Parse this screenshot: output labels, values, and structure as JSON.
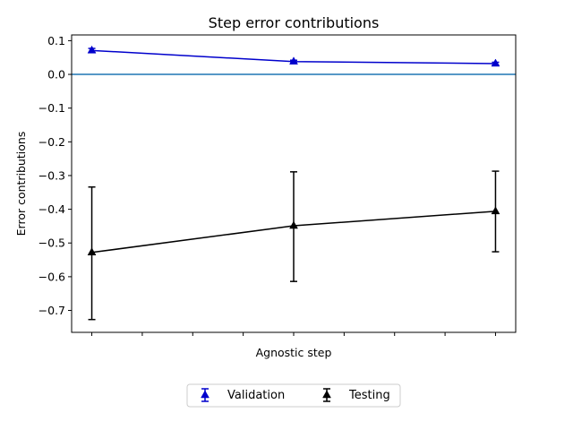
{
  "chart_data": {
    "type": "line",
    "title": "Step error contributions",
    "xlabel": "Agnostic step",
    "ylabel": "Error contributions",
    "x": [
      0,
      1,
      2
    ],
    "xlim": [
      -0.1,
      2.1
    ],
    "x_minor_ticks": [
      0,
      0.25,
      0.5,
      0.75,
      1,
      1.25,
      1.5,
      1.75,
      2
    ],
    "ylim": [
      -0.765,
      0.117
    ],
    "yticks": [
      0.1,
      0.0,
      -0.1,
      -0.2,
      -0.3,
      -0.4,
      -0.5,
      -0.6,
      -0.7
    ],
    "ytick_labels": [
      "0.1",
      "0.0",
      "−0.1",
      "−0.2",
      "−0.3",
      "−0.4",
      "−0.5",
      "−0.6",
      "−0.7"
    ],
    "reference_line": {
      "y": 0.0,
      "color": "#1f77b4"
    },
    "grid": false,
    "legend_position": "bottom-center",
    "series": [
      {
        "name": "Validation",
        "color": "#0000cc",
        "marker": "triangle",
        "values": [
          0.071,
          0.038,
          0.032
        ],
        "err_low": [
          0.065,
          0.034,
          0.028
        ],
        "err_high": [
          0.077,
          0.042,
          0.036
        ]
      },
      {
        "name": "Testing",
        "color": "#000000",
        "marker": "triangle",
        "values": [
          -0.528,
          -0.449,
          -0.406
        ],
        "err_low": [
          -0.727,
          -0.614,
          -0.526
        ],
        "err_high": [
          -0.334,
          -0.289,
          -0.287
        ]
      }
    ]
  }
}
